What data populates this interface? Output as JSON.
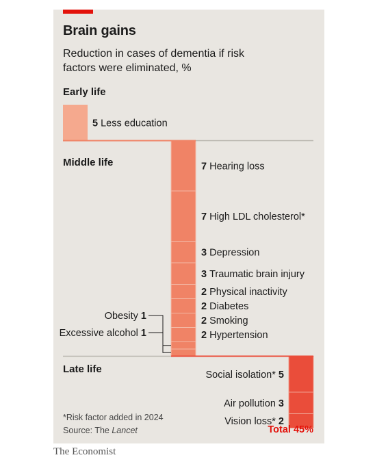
{
  "header": {
    "title": "Brain gains",
    "subtitle": "Reduction in cases of dementia if risk factors were eliminated, %"
  },
  "colors": {
    "early": "#f5a98e",
    "middle": "#f08366",
    "late": "#ea4d3a",
    "accent": "#e3120b",
    "background": "#e9e6e1"
  },
  "chart_data": {
    "type": "bar",
    "title": "Brain gains",
    "subtitle": "Reduction in cases of dementia if risk factors were eliminated, %",
    "groups": [
      {
        "name": "Early life",
        "items": [
          {
            "label": "Less education",
            "value": 5
          }
        ]
      },
      {
        "name": "Middle life",
        "items": [
          {
            "label": "Hearing loss",
            "value": 7
          },
          {
            "label": "High LDL cholesterol*",
            "value": 7
          },
          {
            "label": "Depression",
            "value": 3
          },
          {
            "label": "Traumatic brain injury",
            "value": 3
          },
          {
            "label": "Physical inactivity",
            "value": 2
          },
          {
            "label": "Diabetes",
            "value": 2
          },
          {
            "label": "Smoking",
            "value": 2
          },
          {
            "label": "Hypertension",
            "value": 2
          },
          {
            "label": "Obesity",
            "value": 1
          },
          {
            "label": "Excessive alcohol",
            "value": 1
          }
        ]
      },
      {
        "name": "Late life",
        "items": [
          {
            "label": "Social isolation*",
            "value": 5
          },
          {
            "label": "Air pollution",
            "value": 3
          },
          {
            "label": "Vision loss*",
            "value": 2
          }
        ]
      }
    ],
    "total_label": "Total 45%"
  },
  "footnote": "*Risk factor added in 2024",
  "source_prefix": "Source: The",
  "source_name": "Lancet",
  "publisher": "The Economist"
}
